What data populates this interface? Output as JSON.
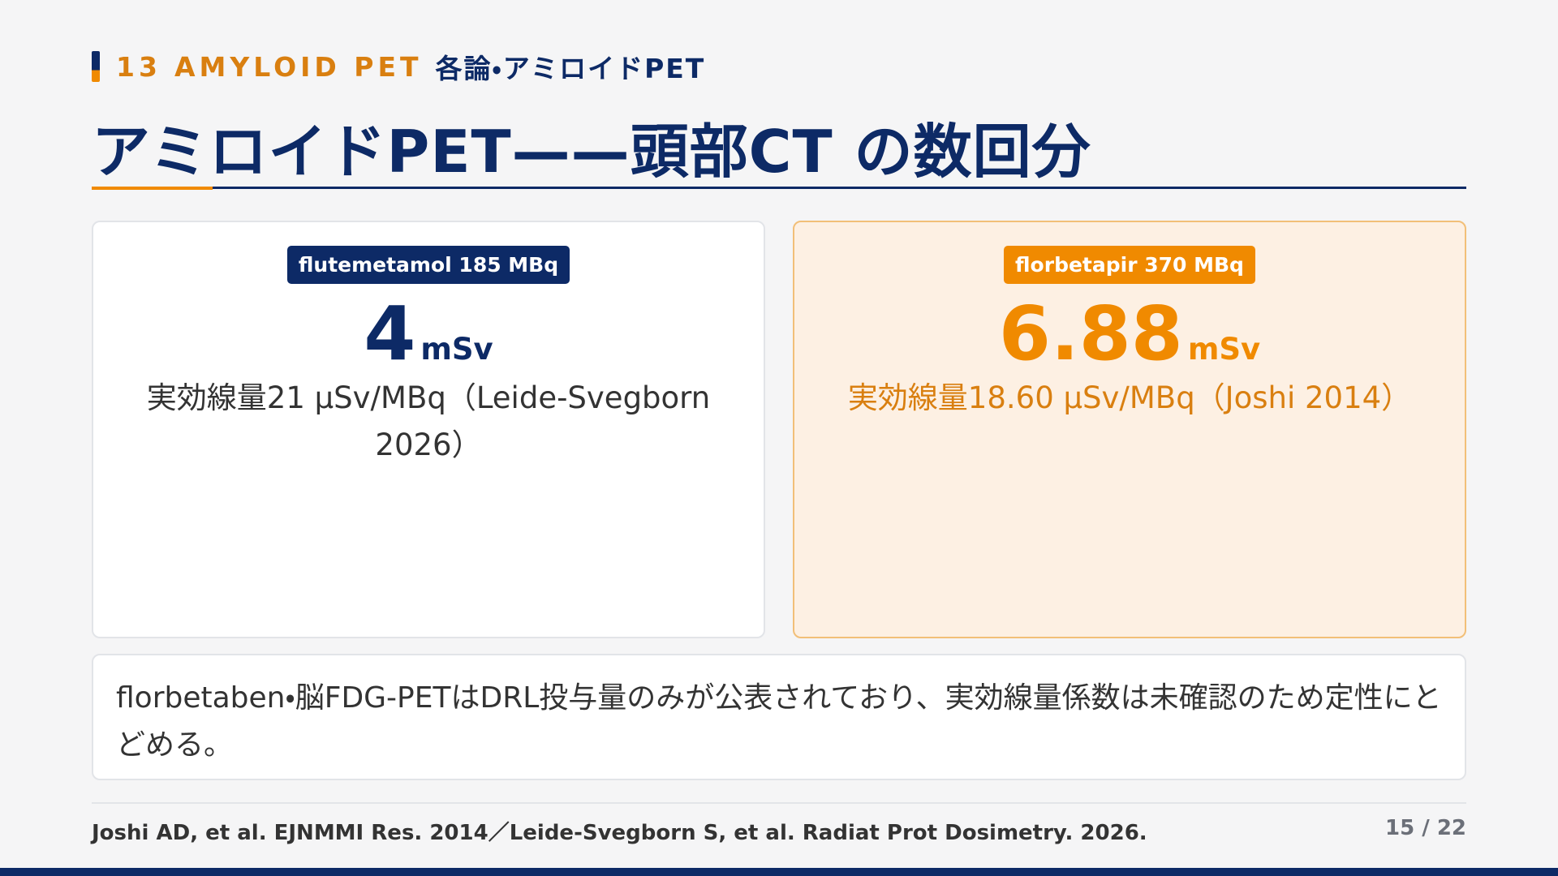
{
  "header": {
    "section_number": "13",
    "section_label": "AMYLOID PET",
    "section_title": "各論・アミロイドPET",
    "title": "アミロイドPET——頭部CT の数回分"
  },
  "cards": [
    {
      "badge": "flutemetamol 185 MBq",
      "value": 4,
      "unit": "mSv",
      "note": "実効線量21 μSv/MBq（Leide-Svegborn 2026）"
    },
    {
      "badge": "florbetapir 370 MBq",
      "value": 6.88,
      "unit": "mSv",
      "note": "実効線量18.60 μSv/MBq（Joshi 2014）"
    }
  ],
  "note": "florbetaben・脳FDG-PETはDRL投与量のみが公表されており、実効線量係数は未確認のため定性にとどめる。",
  "footer": {
    "citation": "Joshi AD, et al. EJNMMI Res. 2014／Leide-Svegborn S, et al. Radiat Prot Dosimetry. 2026.",
    "page": "15 / 22"
  }
}
